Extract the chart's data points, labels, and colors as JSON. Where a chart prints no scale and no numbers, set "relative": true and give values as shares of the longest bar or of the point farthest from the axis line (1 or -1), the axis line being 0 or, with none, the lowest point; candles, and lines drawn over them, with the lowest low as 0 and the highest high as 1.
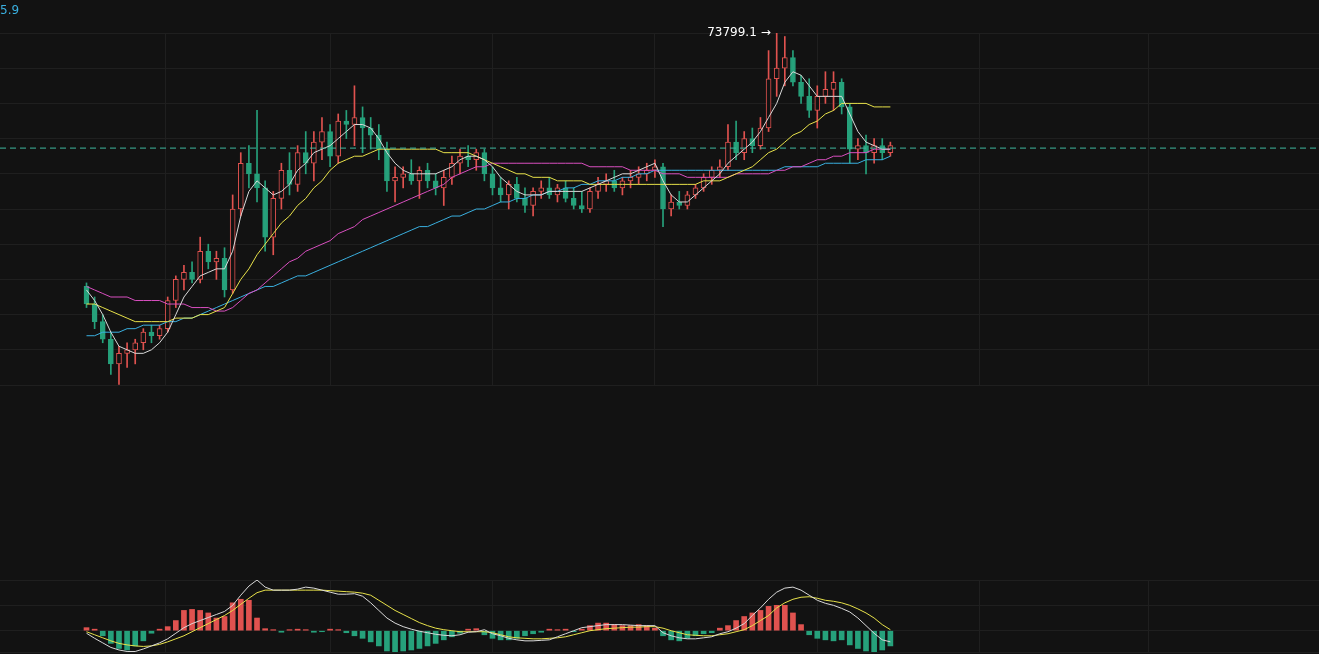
{
  "chart_data": [
    {
      "type": "candlestick",
      "relative": true,
      "grid": true,
      "annotations": [
        "5.9",
        "73799.1 →"
      ],
      "ref_lines": [
        {
          "axis": "y",
          "value": 0.673,
          "color": "#3fb9a0",
          "line_style": "dashed"
        }
      ],
      "categories": [
        null,
        null,
        null,
        null,
        null,
        null,
        null,
        null,
        null,
        null,
        null,
        null,
        null,
        null,
        null,
        null,
        null,
        null,
        null,
        null,
        null,
        null,
        null,
        null,
        null,
        null,
        null,
        null,
        null,
        null,
        null,
        null,
        null,
        null,
        null,
        null,
        null,
        null,
        null,
        null,
        null,
        null,
        null,
        null,
        null,
        null,
        null,
        null,
        null,
        null,
        null,
        null,
        null,
        null,
        null,
        null,
        null,
        null,
        null,
        null,
        null,
        null,
        null,
        null,
        null,
        null,
        null,
        null,
        null,
        null,
        null,
        null,
        null,
        null,
        null,
        null,
        null,
        null,
        null,
        null,
        null,
        null,
        null,
        null,
        null,
        null,
        null,
        null,
        null,
        null,
        null,
        null,
        null,
        null,
        null,
        null,
        null,
        null,
        null,
        null
      ],
      "ohlc": [
        [
          0.28,
          0.29,
          0.22,
          0.23
        ],
        [
          0.23,
          0.25,
          0.16,
          0.18
        ],
        [
          0.18,
          0.2,
          0.12,
          0.13
        ],
        [
          0.13,
          0.15,
          0.03,
          0.06
        ],
        [
          0.06,
          0.11,
          0,
          0.09
        ],
        [
          0.09,
          0.12,
          0.05,
          0.1
        ],
        [
          0.1,
          0.13,
          0.06,
          0.12
        ],
        [
          0.12,
          0.16,
          0.1,
          0.15
        ],
        [
          0.15,
          0.17,
          0.12,
          0.14
        ],
        [
          0.14,
          0.17,
          0.13,
          0.16
        ],
        [
          0.16,
          0.25,
          0.15,
          0.24
        ],
        [
          0.24,
          0.31,
          0.22,
          0.3
        ],
        [
          0.3,
          0.34,
          0.27,
          0.32
        ],
        [
          0.32,
          0.35,
          0.29,
          0.3
        ],
        [
          0.3,
          0.42,
          0.29,
          0.38
        ],
        [
          0.38,
          0.4,
          0.33,
          0.35
        ],
        [
          0.35,
          0.38,
          0.3,
          0.36
        ],
        [
          0.36,
          0.39,
          0.25,
          0.27
        ],
        [
          0.27,
          0.54,
          0.26,
          0.5
        ],
        [
          0.5,
          0.66,
          0.48,
          0.63
        ],
        [
          0.63,
          0.68,
          0.56,
          0.6
        ],
        [
          0.6,
          0.78,
          0.52,
          0.56
        ],
        [
          0.56,
          0.58,
          0.38,
          0.42
        ],
        [
          0.42,
          0.55,
          0.37,
          0.53
        ],
        [
          0.53,
          0.63,
          0.5,
          0.61
        ],
        [
          0.61,
          0.66,
          0.54,
          0.57
        ],
        [
          0.57,
          0.68,
          0.55,
          0.66
        ],
        [
          0.66,
          0.72,
          0.6,
          0.63
        ],
        [
          0.63,
          0.72,
          0.58,
          0.69
        ],
        [
          0.69,
          0.76,
          0.64,
          0.72
        ],
        [
          0.72,
          0.74,
          0.62,
          0.65
        ],
        [
          0.65,
          0.77,
          0.63,
          0.75
        ],
        [
          0.75,
          0.78,
          0.7,
          0.74
        ],
        [
          0.74,
          0.85,
          0.68,
          0.76
        ],
        [
          0.76,
          0.79,
          0.66,
          0.73
        ],
        [
          0.73,
          0.76,
          0.67,
          0.71
        ],
        [
          0.71,
          0.74,
          0.64,
          0.67
        ],
        [
          0.67,
          0.69,
          0.55,
          0.58
        ],
        [
          0.58,
          0.62,
          0.52,
          0.59
        ],
        [
          0.59,
          0.62,
          0.56,
          0.6
        ],
        [
          0.6,
          0.64,
          0.57,
          0.58
        ],
        [
          0.58,
          0.62,
          0.53,
          0.61
        ],
        [
          0.61,
          0.63,
          0.56,
          0.58
        ],
        [
          0.58,
          0.6,
          0.54,
          0.56
        ],
        [
          0.56,
          0.61,
          0.51,
          0.59
        ],
        [
          0.59,
          0.65,
          0.57,
          0.63
        ],
        [
          0.63,
          0.67,
          0.6,
          0.65
        ],
        [
          0.65,
          0.68,
          0.62,
          0.64
        ],
        [
          0.64,
          0.67,
          0.61,
          0.66
        ],
        [
          0.66,
          0.67,
          0.58,
          0.6
        ],
        [
          0.6,
          0.62,
          0.54,
          0.56
        ],
        [
          0.56,
          0.59,
          0.52,
          0.54
        ],
        [
          0.54,
          0.58,
          0.5,
          0.57
        ],
        [
          0.57,
          0.59,
          0.52,
          0.53
        ],
        [
          0.53,
          0.56,
          0.49,
          0.51
        ],
        [
          0.51,
          0.56,
          0.48,
          0.55
        ],
        [
          0.55,
          0.58,
          0.53,
          0.56
        ],
        [
          0.56,
          0.59,
          0.53,
          0.54
        ],
        [
          0.54,
          0.57,
          0.52,
          0.56
        ],
        [
          0.56,
          0.58,
          0.52,
          0.53
        ],
        [
          0.53,
          0.56,
          0.5,
          0.51
        ],
        [
          0.51,
          0.55,
          0.49,
          0.5
        ],
        [
          0.5,
          0.56,
          0.49,
          0.55
        ],
        [
          0.55,
          0.59,
          0.53,
          0.57
        ],
        [
          0.57,
          0.6,
          0.55,
          0.58
        ],
        [
          0.58,
          0.61,
          0.55,
          0.56
        ],
        [
          0.56,
          0.59,
          0.54,
          0.58
        ],
        [
          0.58,
          0.61,
          0.56,
          0.59
        ],
        [
          0.59,
          0.62,
          0.57,
          0.6
        ],
        [
          0.6,
          0.63,
          0.58,
          0.61
        ],
        [
          0.61,
          0.64,
          0.59,
          0.62
        ],
        [
          0.62,
          0.63,
          0.45,
          0.5
        ],
        [
          0.5,
          0.54,
          0.48,
          0.52
        ],
        [
          0.52,
          0.55,
          0.5,
          0.51
        ],
        [
          0.51,
          0.55,
          0.5,
          0.54
        ],
        [
          0.54,
          0.57,
          0.53,
          0.56
        ],
        [
          0.56,
          0.6,
          0.55,
          0.59
        ],
        [
          0.59,
          0.62,
          0.57,
          0.61
        ],
        [
          0.61,
          0.64,
          0.59,
          0.62
        ],
        [
          0.62,
          0.74,
          0.61,
          0.69
        ],
        [
          0.69,
          0.75,
          0.64,
          0.66
        ],
        [
          0.66,
          0.72,
          0.64,
          0.7
        ],
        [
          0.7,
          0.73,
          0.66,
          0.68
        ],
        [
          0.68,
          0.76,
          0.67,
          0.73
        ],
        [
          0.73,
          0.95,
          0.72,
          0.87
        ],
        [
          0.87,
          1,
          0.82,
          0.9
        ],
        [
          0.9,
          0.99,
          0.85,
          0.93
        ],
        [
          0.93,
          0.95,
          0.85,
          0.86
        ],
        [
          0.86,
          0.88,
          0.8,
          0.82
        ],
        [
          0.82,
          0.87,
          0.76,
          0.78
        ],
        [
          0.78,
          0.85,
          0.73,
          0.82
        ],
        [
          0.82,
          0.89,
          0.8,
          0.84
        ],
        [
          0.84,
          0.89,
          0.78,
          0.86
        ],
        [
          0.86,
          0.87,
          0.77,
          0.79
        ],
        [
          0.79,
          0.8,
          0.63,
          0.67
        ],
        [
          0.67,
          0.7,
          0.64,
          0.68
        ],
        [
          0.68,
          0.71,
          0.6,
          0.66
        ],
        [
          0.66,
          0.7,
          0.63,
          0.68
        ],
        [
          0.68,
          0.7,
          0.64,
          0.66
        ],
        [
          0.66,
          0.69,
          0.65,
          0.68
        ]
      ],
      "colors": [
        "#26a17b",
        "#26a17b",
        "#26a17b",
        "#26a17b",
        "#e0524f",
        "#e0524f",
        "#e0524f",
        "#e0524f",
        "#26a17b",
        "#e0524f",
        "#e0524f",
        "#e0524f",
        "#e0524f",
        "#26a17b",
        "#e0524f",
        "#26a17b",
        "#e0524f",
        "#26a17b",
        "#e0524f",
        "#e0524f",
        "#26a17b",
        "#26a17b",
        "#26a17b",
        "#e0524f",
        "#e0524f",
        "#26a17b",
        "#e0524f",
        "#26a17b",
        "#e0524f",
        "#e0524f",
        "#26a17b",
        "#e0524f",
        "#26a17b",
        "#e0524f",
        "#26a17b",
        "#26a17b",
        "#26a17b",
        "#26a17b",
        "#e0524f",
        "#e0524f",
        "#26a17b",
        "#e0524f",
        "#26a17b",
        "#26a17b",
        "#e0524f",
        "#e0524f",
        "#e0524f",
        "#26a17b",
        "#e0524f",
        "#26a17b",
        "#26a17b",
        "#26a17b",
        "#e0524f",
        "#26a17b",
        "#26a17b",
        "#e0524f",
        "#e0524f",
        "#26a17b",
        "#e0524f",
        "#26a17b",
        "#26a17b",
        "#26a17b",
        "#e0524f",
        "#e0524f",
        "#e0524f",
        "#26a17b",
        "#e0524f",
        "#e0524f",
        "#e0524f",
        "#e0524f",
        "#e0524f",
        "#26a17b",
        "#e0524f",
        "#26a17b",
        "#e0524f",
        "#e0524f",
        "#e0524f",
        "#e0524f",
        "#e0524f",
        "#e0524f",
        "#26a17b",
        "#e0524f",
        "#26a17b",
        "#e0524f",
        "#e0524f",
        "#e0524f",
        "#e0524f",
        "#26a17b",
        "#26a17b",
        "#26a17b",
        "#e0524f",
        "#e0524f",
        "#e0524f",
        "#26a17b",
        "#26a17b",
        "#e0524f",
        "#26a17b",
        "#e0524f",
        "#26a17b",
        "#e0524f"
      ],
      "series": [
        {
          "type": "line",
          "color": "#d9d9d9",
          "values": [
            0.27,
            0.24,
            0.2,
            0.15,
            0.11,
            0.1,
            0.09,
            0.09,
            0.1,
            0.12,
            0.15,
            0.2,
            0.25,
            0.28,
            0.31,
            0.32,
            0.33,
            0.33,
            0.38,
            0.48,
            0.55,
            0.58,
            0.56,
            0.54,
            0.55,
            0.57,
            0.61,
            0.63,
            0.66,
            0.67,
            0.68,
            0.7,
            0.72,
            0.74,
            0.74,
            0.73,
            0.7,
            0.66,
            0.63,
            0.61,
            0.6,
            0.6,
            0.6,
            0.6,
            0.61,
            0.62,
            0.64,
            0.65,
            0.65,
            0.64,
            0.62,
            0.59,
            0.57,
            0.55,
            0.54,
            0.54,
            0.54,
            0.55,
            0.55,
            0.55,
            0.55,
            0.55,
            0.56,
            0.57,
            0.58,
            0.59,
            0.6,
            0.6,
            0.61,
            0.62,
            0.63,
            0.58,
            0.54,
            0.52,
            0.52,
            0.54,
            0.56,
            0.58,
            0.6,
            0.63,
            0.65,
            0.67,
            0.69,
            0.72,
            0.76,
            0.8,
            0.86,
            0.89,
            0.88,
            0.85,
            0.82,
            0.82,
            0.82,
            0.82,
            0.77,
            0.72,
            0.69,
            0.68,
            0.67,
            0.67
          ]
        },
        {
          "type": "line",
          "color": "#e8e24a",
          "values": [
            0.23,
            0.23,
            0.22,
            0.21,
            0.2,
            0.19,
            0.18,
            0.18,
            0.18,
            0.18,
            0.18,
            0.19,
            0.19,
            0.19,
            0.2,
            0.2,
            0.21,
            0.22,
            0.26,
            0.3,
            0.33,
            0.37,
            0.4,
            0.43,
            0.46,
            0.48,
            0.51,
            0.53,
            0.56,
            0.58,
            0.61,
            0.63,
            0.64,
            0.65,
            0.65,
            0.66,
            0.67,
            0.67,
            0.67,
            0.67,
            0.67,
            0.67,
            0.67,
            0.67,
            0.66,
            0.66,
            0.66,
            0.66,
            0.65,
            0.64,
            0.63,
            0.62,
            0.61,
            0.6,
            0.6,
            0.59,
            0.59,
            0.59,
            0.58,
            0.58,
            0.58,
            0.58,
            0.57,
            0.57,
            0.57,
            0.57,
            0.57,
            0.57,
            0.57,
            0.57,
            0.57,
            0.57,
            0.57,
            0.57,
            0.57,
            0.57,
            0.58,
            0.58,
            0.58,
            0.59,
            0.6,
            0.61,
            0.62,
            0.64,
            0.66,
            0.67,
            0.69,
            0.71,
            0.72,
            0.74,
            0.75,
            0.77,
            0.78,
            0.8,
            0.8,
            0.8,
            0.8,
            0.79,
            0.79,
            0.79
          ]
        },
        {
          "type": "line",
          "color": "#d94fc0",
          "values": [
            0.28,
            0.27,
            0.26,
            0.25,
            0.25,
            0.25,
            0.24,
            0.24,
            0.24,
            0.24,
            0.23,
            0.23,
            0.23,
            0.22,
            0.22,
            0.22,
            0.21,
            0.21,
            0.22,
            0.24,
            0.26,
            0.27,
            0.29,
            0.31,
            0.33,
            0.35,
            0.36,
            0.38,
            0.39,
            0.4,
            0.41,
            0.43,
            0.44,
            0.45,
            0.47,
            0.48,
            0.49,
            0.5,
            0.51,
            0.52,
            0.53,
            0.54,
            0.55,
            0.56,
            0.57,
            0.59,
            0.6,
            0.61,
            0.62,
            0.62,
            0.63,
            0.63,
            0.63,
            0.63,
            0.63,
            0.63,
            0.63,
            0.63,
            0.63,
            0.63,
            0.63,
            0.63,
            0.62,
            0.62,
            0.62,
            0.62,
            0.62,
            0.61,
            0.61,
            0.61,
            0.61,
            0.6,
            0.6,
            0.6,
            0.59,
            0.59,
            0.59,
            0.59,
            0.59,
            0.59,
            0.6,
            0.6,
            0.6,
            0.6,
            0.6,
            0.61,
            0.61,
            0.62,
            0.62,
            0.63,
            0.64,
            0.64,
            0.65,
            0.65,
            0.66,
            0.66,
            0.66,
            0.67,
            0.67,
            0.67
          ]
        },
        {
          "type": "line",
          "color": "#3ab0e0",
          "values": [
            0.14,
            0.14,
            0.15,
            0.15,
            0.15,
            0.16,
            0.16,
            0.17,
            0.17,
            0.17,
            0.18,
            0.18,
            0.19,
            0.19,
            0.2,
            0.21,
            0.22,
            0.23,
            0.24,
            0.25,
            0.26,
            0.27,
            0.28,
            0.28,
            0.29,
            0.3,
            0.31,
            0.31,
            0.32,
            0.33,
            0.34,
            0.35,
            0.36,
            0.37,
            0.38,
            0.39,
            0.4,
            0.41,
            0.42,
            0.43,
            0.44,
            0.45,
            0.45,
            0.46,
            0.47,
            0.48,
            0.48,
            0.49,
            0.5,
            0.5,
            0.51,
            0.52,
            0.52,
            0.53,
            0.53,
            0.54,
            0.54,
            0.55,
            0.55,
            0.56,
            0.56,
            0.57,
            0.57,
            0.58,
            0.58,
            0.58,
            0.59,
            0.59,
            0.6,
            0.6,
            0.61,
            0.61,
            0.61,
            0.61,
            0.61,
            0.61,
            0.61,
            0.61,
            0.61,
            0.61,
            0.61,
            0.61,
            0.61,
            0.61,
            0.61,
            0.61,
            0.62,
            0.62,
            0.62,
            0.62,
            0.62,
            0.63,
            0.63,
            0.63,
            0.63,
            0.63,
            0.64,
            0.64,
            0.64,
            0.65
          ]
        }
      ]
    },
    {
      "type": "bar",
      "relative": true,
      "grid": true,
      "categories": [
        null,
        null,
        null,
        null,
        null,
        null,
        null,
        null,
        null,
        null,
        null,
        null,
        null,
        null,
        null,
        null,
        null,
        null,
        null,
        null,
        null,
        null,
        null,
        null,
        null,
        null,
        null,
        null,
        null,
        null,
        null,
        null,
        null,
        null,
        null,
        null,
        null,
        null,
        null,
        null,
        null,
        null,
        null,
        null,
        null,
        null,
        null,
        null,
        null,
        null,
        null,
        null,
        null,
        null,
        null,
        null,
        null,
        null,
        null,
        null,
        null,
        null,
        null,
        null,
        null,
        null,
        null,
        null,
        null,
        null,
        null,
        null,
        null,
        null,
        null,
        null,
        null,
        null,
        null,
        null,
        null,
        null,
        null,
        null,
        null,
        null,
        null,
        null,
        null,
        null,
        null,
        null,
        null,
        null,
        null,
        null,
        null,
        null,
        null,
        null
      ],
      "series": [
        {
          "type": "bar",
          "colors": [
            "#e0524f",
            "#e0524f",
            "#26a17b",
            "#26a17b",
            "#26a17b",
            "#26a17b",
            "#26a17b",
            "#26a17b",
            "#26a17b",
            "#e0524f",
            "#e0524f",
            "#e0524f",
            "#e0524f",
            "#e0524f",
            "#e0524f",
            "#e0524f",
            "#e0524f",
            "#e0524f",
            "#e0524f",
            "#e0524f",
            "#e0524f",
            "#e0524f",
            "#e0524f",
            "#e0524f",
            "#26a17b",
            "#e0524f",
            "#e0524f",
            "#e0524f",
            "#26a17b",
            "#26a17b",
            "#e0524f",
            "#e0524f",
            "#26a17b",
            "#26a17b",
            "#26a17b",
            "#26a17b",
            "#26a17b",
            "#26a17b",
            "#26a17b",
            "#26a17b",
            "#26a17b",
            "#26a17b",
            "#26a17b",
            "#26a17b",
            "#26a17b",
            "#26a17b",
            "#26a17b",
            "#e0524f",
            "#e0524f",
            "#26a17b",
            "#26a17b",
            "#26a17b",
            "#26a17b",
            "#26a17b",
            "#26a17b",
            "#26a17b",
            "#26a17b",
            "#e0524f",
            "#e0524f",
            "#e0524f",
            "#26a17b",
            "#e0524f",
            "#e0524f",
            "#e0524f",
            "#e0524f",
            "#e0524f",
            "#e0524f",
            "#e0524f",
            "#e0524f",
            "#e0524f",
            "#e0524f",
            "#26a17b",
            "#26a17b",
            "#26a17b",
            "#26a17b",
            "#26a17b",
            "#26a17b",
            "#26a17b",
            "#e0524f",
            "#e0524f",
            "#e0524f",
            "#e0524f",
            "#e0524f",
            "#e0524f",
            "#e0524f",
            "#e0524f",
            "#e0524f",
            "#e0524f",
            "#e0524f",
            "#26a17b",
            "#26a17b",
            "#26a17b",
            "#26a17b",
            "#26a17b",
            "#26a17b",
            "#26a17b",
            "#26a17b",
            "#26a17b",
            "#26a17b",
            "#26a17b"
          ],
          "values": [
            0.06,
            0.03,
            -0.1,
            -0.25,
            -0.35,
            -0.38,
            -0.3,
            -0.2,
            -0.05,
            0.03,
            0.08,
            0.2,
            0.4,
            0.42,
            0.4,
            0.35,
            0.25,
            0.28,
            0.55,
            0.62,
            0.6,
            0.25,
            0.04,
            0.02,
            -0.03,
            0.02,
            0.03,
            0.02,
            -0.03,
            -0.02,
            0.03,
            0.02,
            -0.04,
            -0.1,
            -0.15,
            -0.22,
            -0.3,
            -0.4,
            -0.42,
            -0.4,
            -0.38,
            -0.35,
            -0.3,
            -0.25,
            -0.18,
            -0.12,
            -0.05,
            0.03,
            0.04,
            -0.08,
            -0.15,
            -0.18,
            -0.18,
            -0.15,
            -0.1,
            -0.06,
            -0.03,
            0.03,
            0.02,
            0.03,
            -0.02,
            0.03,
            0.1,
            0.15,
            0.15,
            0.12,
            0.1,
            0.1,
            0.12,
            0.1,
            0.05,
            -0.1,
            -0.18,
            -0.2,
            -0.15,
            -0.1,
            -0.06,
            -0.04,
            0.05,
            0.1,
            0.2,
            0.28,
            0.35,
            0.4,
            0.48,
            0.5,
            0.5,
            0.35,
            0.12,
            -0.08,
            -0.15,
            -0.18,
            -0.2,
            -0.18,
            -0.28,
            -0.35,
            -0.4,
            -0.42,
            -0.38,
            -0.3
          ]
        },
        {
          "type": "line",
          "color": "#d9d9d9",
          "values": [
            -0.05,
            -0.15,
            -0.24,
            -0.33,
            -0.38,
            -0.41,
            -0.41,
            -0.36,
            -0.3,
            -0.24,
            -0.16,
            -0.05,
            0.06,
            0.14,
            0.2,
            0.26,
            0.32,
            0.38,
            0.5,
            0.7,
            0.88,
            1,
            0.86,
            0.8,
            0.8,
            0.8,
            0.82,
            0.86,
            0.84,
            0.8,
            0.76,
            0.72,
            0.72,
            0.73,
            0.68,
            0.55,
            0.4,
            0.25,
            0.15,
            0.08,
            0.03,
            -0.01,
            -0.04,
            -0.07,
            -0.09,
            -0.1,
            -0.08,
            -0.03,
            -0.02,
            0.02,
            -0.06,
            -0.1,
            -0.15,
            -0.18,
            -0.2,
            -0.2,
            -0.19,
            -0.18,
            -0.12,
            -0.06,
            0,
            0.06,
            0.08,
            0.1,
            0.12,
            0.12,
            0.12,
            0.11,
            0.1,
            0.1,
            0.1,
            -0.04,
            -0.1,
            -0.14,
            -0.16,
            -0.16,
            -0.14,
            -0.12,
            -0.06,
            -0.02,
            0.05,
            0.14,
            0.3,
            0.45,
            0.62,
            0.76,
            0.84,
            0.86,
            0.8,
            0.7,
            0.6,
            0.54,
            0.5,
            0.44,
            0.37,
            0.25,
            0.1,
            -0.05,
            -0.18,
            -0.22
          ]
        },
        {
          "type": "line",
          "color": "#e8e24a",
          "values": [
            -0.02,
            -0.08,
            -0.14,
            -0.2,
            -0.25,
            -0.28,
            -0.3,
            -0.31,
            -0.3,
            -0.27,
            -0.22,
            -0.16,
            -0.1,
            -0.02,
            0.06,
            0.14,
            0.22,
            0.3,
            0.4,
            0.52,
            0.64,
            0.75,
            0.8,
            0.8,
            0.8,
            0.8,
            0.8,
            0.8,
            0.8,
            0.8,
            0.79,
            0.78,
            0.77,
            0.76,
            0.74,
            0.7,
            0.6,
            0.5,
            0.4,
            0.32,
            0.24,
            0.16,
            0.1,
            0.05,
            0.02,
            0,
            -0.02,
            -0.02,
            -0.02,
            -0.02,
            -0.04,
            -0.08,
            -0.12,
            -0.14,
            -0.15,
            -0.16,
            -0.16,
            -0.15,
            -0.14,
            -0.12,
            -0.08,
            -0.04,
            0,
            0.02,
            0.04,
            0.05,
            0.06,
            0.07,
            0.07,
            0.08,
            0.08,
            0.05,
            0,
            -0.04,
            -0.08,
            -0.09,
            -0.1,
            -0.1,
            -0.08,
            -0.06,
            -0.02,
            0.02,
            0.1,
            0.2,
            0.3,
            0.45,
            0.55,
            0.62,
            0.66,
            0.67,
            0.64,
            0.6,
            0.58,
            0.55,
            0.5,
            0.43,
            0.35,
            0.25,
            0.12,
            0.02
          ]
        }
      ]
    }
  ]
}
